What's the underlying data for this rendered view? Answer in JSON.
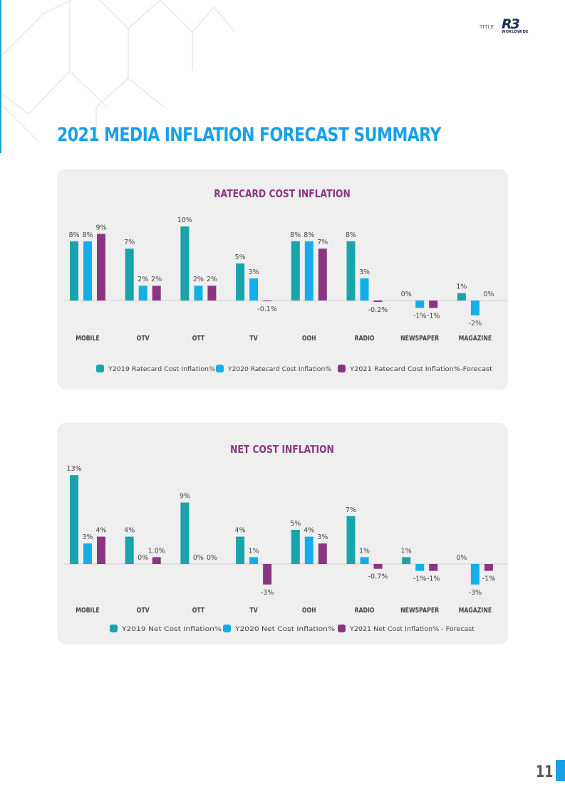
{
  "header": {
    "label": "TITLE",
    "logo_text": "R3",
    "logo_sub": "WORLDWIDE"
  },
  "page_title": "2021 MEDIA INFLATION FORECAST SUMMARY",
  "page_number": "11",
  "colors": {
    "y2019": "#1aa3ab",
    "y2020": "#12aee8",
    "y2021": "#8a3582",
    "title": "#8a3582",
    "accent": "#1aa0e6"
  },
  "chart_data": [
    {
      "type": "bar",
      "title": "RATECARD COST INFLATION",
      "categories": [
        "MOBILE",
        "OTV",
        "OTT",
        "TV",
        "OOH",
        "RADIO",
        "NEWSPAPER",
        "MAGAZINE"
      ],
      "series": [
        {
          "name": "Y2019 Ratecard Cost Inflation%",
          "values": [
            8,
            7,
            10,
            5,
            8,
            8,
            0,
            1
          ],
          "labels": [
            "8%",
            "7%",
            "10%",
            "5%",
            "8%",
            "8%",
            "0%",
            "1%"
          ]
        },
        {
          "name": "Y2020 Ratecard Cost Inflation%",
          "values": [
            8,
            2,
            2,
            3,
            8,
            3,
            -1,
            -2
          ],
          "labels": [
            "8%",
            "2%",
            "2%",
            "3%",
            "8%",
            "3%",
            "-1%",
            "-2%"
          ]
        },
        {
          "name": "Y2021 Ratecard Cost Inflation%-Forecast",
          "values": [
            9,
            2,
            2,
            -0.1,
            7,
            -0.2,
            -1,
            0
          ],
          "labels": [
            "9%",
            "2%",
            "2%",
            "-0.1%",
            "7%",
            "-0.2%",
            "-1%",
            "0%"
          ]
        }
      ],
      "legend_position": "bottom"
    },
    {
      "type": "bar",
      "title": "NET COST INFLATION",
      "categories": [
        "MOBILE",
        "OTV",
        "OTT",
        "TV",
        "OOH",
        "RADIO",
        "NEWSPAPER",
        "MAGAZINE"
      ],
      "series": [
        {
          "name": "Y2019 Net Cost Inflation%",
          "values": [
            13,
            4,
            9,
            4,
            5,
            7,
            1,
            0
          ],
          "labels": [
            "13%",
            "4%",
            "9%",
            "4%",
            "5%",
            "7%",
            "1%",
            "0%"
          ]
        },
        {
          "name": "Y2020 Net Cost Inflation%",
          "values": [
            3,
            0,
            0,
            1,
            4,
            1,
            -1,
            -3
          ],
          "labels": [
            "3%",
            "0%",
            "0%",
            "1%",
            "4%",
            "1%",
            "-1%",
            "-3%"
          ]
        },
        {
          "name": "Y2021 Net Cost Inflation% - Forecast",
          "values": [
            4,
            1.0,
            0,
            -3,
            3,
            -0.7,
            -1,
            -1
          ],
          "labels": [
            "4%",
            "1.0%",
            "0%",
            "-3%",
            "3%",
            "-0.7%",
            "-1%",
            "-1%"
          ]
        }
      ],
      "legend_position": "bottom"
    }
  ]
}
